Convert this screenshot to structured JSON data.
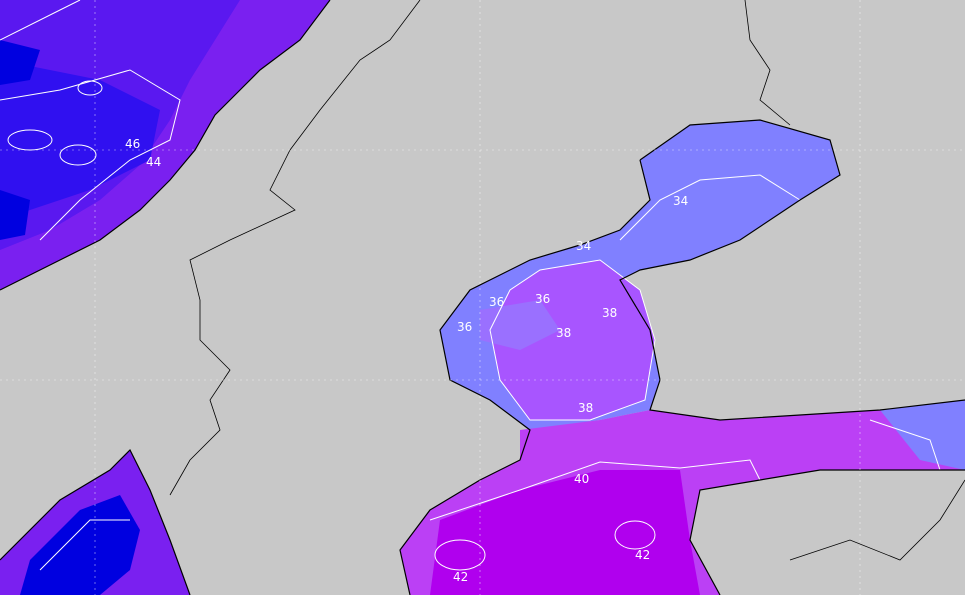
{
  "map": {
    "colors": {
      "land": "#c8c8c8",
      "sea_34": "#8080ff",
      "sea_36": "#9a70ff",
      "sea_38": "#a855ff",
      "sea_40": "#bb40f5",
      "sea_42": "#b000ee",
      "sea_44": "#7a20f0",
      "sea_46": "#3010f0",
      "sea_48": "#0000e0",
      "contour": "#ffffff",
      "coastline": "#000000"
    },
    "contour_labels": [
      "46",
      "44",
      "34",
      "34",
      "36",
      "36",
      "36",
      "38",
      "38",
      "38",
      "40",
      "42",
      "42"
    ]
  }
}
